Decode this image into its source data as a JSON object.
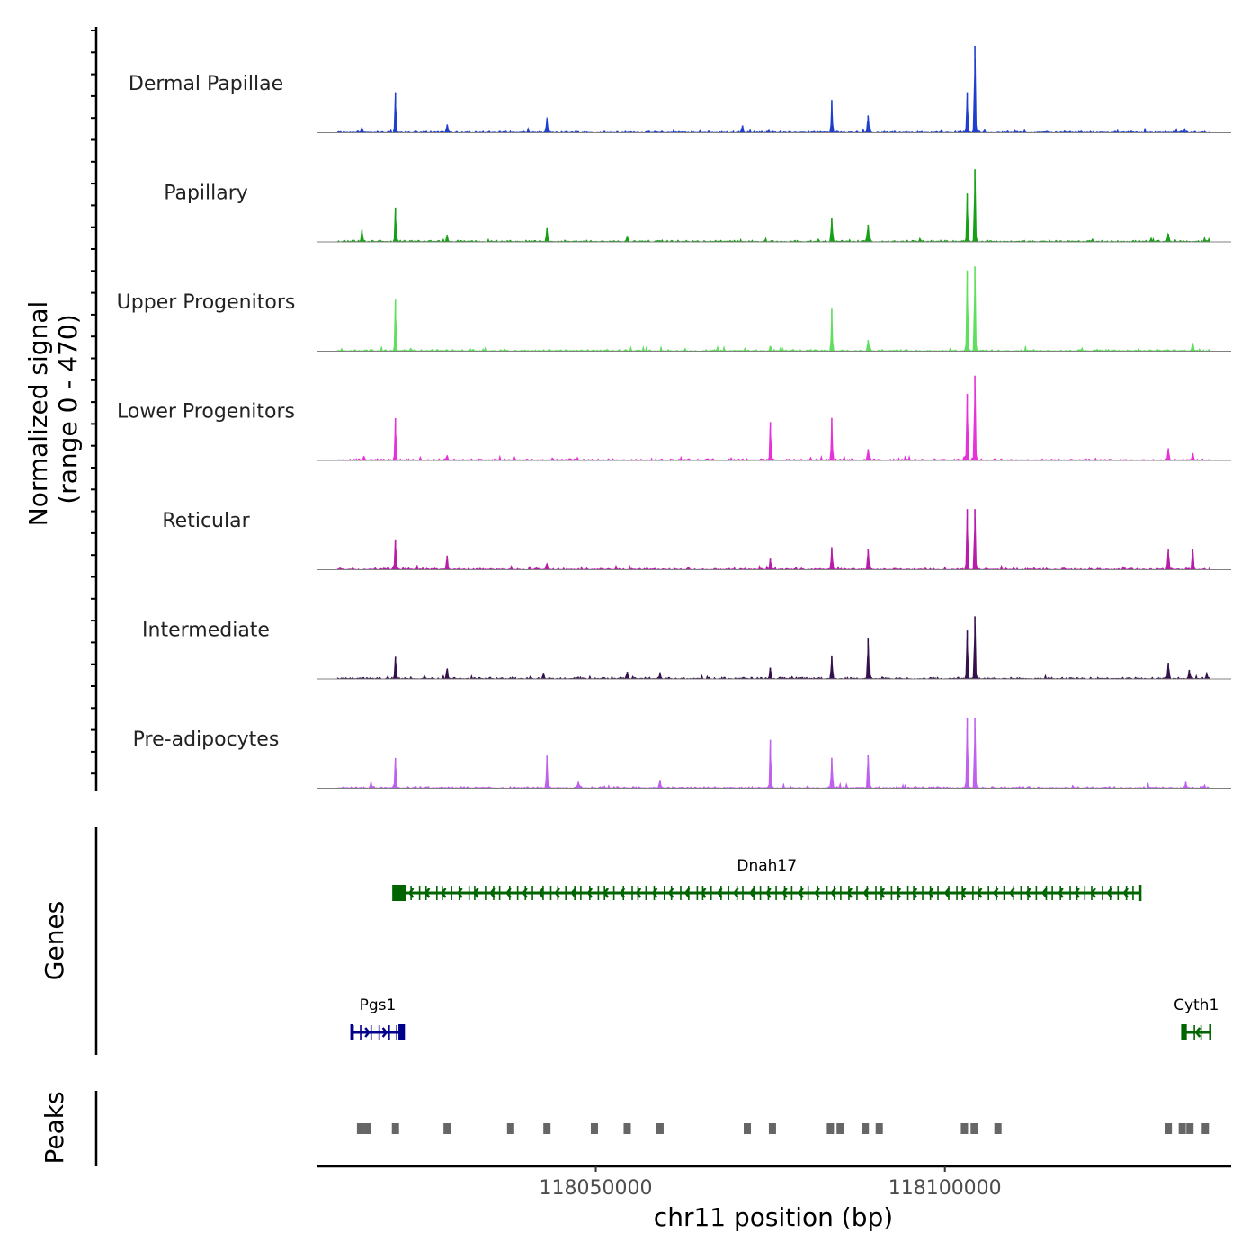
{
  "chart_data": {
    "type": "area",
    "title": "",
    "ylabel_line1": "Normalized signal",
    "ylabel_line2": "(range 0 - 470)",
    "xlabel": "chr11 position (bp)",
    "chromosome": "chr11",
    "xlim": [
      118010000,
      118141000
    ],
    "ylim": [
      0,
      470
    ],
    "x_ticks": [
      118050000,
      118100000
    ],
    "x_tick_labels": [
      "118050000",
      "118100000"
    ],
    "genes_label": "Genes",
    "peaks_label": "Peaks",
    "tracks": [
      {
        "name": "Dermal Papillae",
        "color": "#1f3fcf",
        "peaks": [
          [
            118016500,
            22
          ],
          [
            118021300,
            200
          ],
          [
            118028700,
            40
          ],
          [
            118043000,
            70
          ],
          [
            118071000,
            35
          ],
          [
            118083800,
            160
          ],
          [
            118089000,
            85
          ],
          [
            118103200,
            200
          ],
          [
            118104300,
            430
          ]
        ]
      },
      {
        "name": "Papillary",
        "color": "#16a016",
        "peaks": [
          [
            118016500,
            60
          ],
          [
            118021300,
            170
          ],
          [
            118028700,
            35
          ],
          [
            118043000,
            70
          ],
          [
            118054500,
            30
          ],
          [
            118083800,
            120
          ],
          [
            118089000,
            85
          ],
          [
            118103200,
            240
          ],
          [
            118104300,
            360
          ],
          [
            118132000,
            40
          ]
        ]
      },
      {
        "name": "Upper Progenitors",
        "color": "#5ee05e",
        "peaks": [
          [
            118021300,
            255
          ],
          [
            118075000,
            25
          ],
          [
            118083800,
            210
          ],
          [
            118089000,
            55
          ],
          [
            118103200,
            400
          ],
          [
            118104300,
            420
          ],
          [
            118135500,
            40
          ]
        ]
      },
      {
        "name": "Lower Progenitors",
        "color": "#e632d8",
        "peaks": [
          [
            118016800,
            20
          ],
          [
            118021300,
            210
          ],
          [
            118028700,
            25
          ],
          [
            118075000,
            190
          ],
          [
            118083800,
            210
          ],
          [
            118089000,
            55
          ],
          [
            118103200,
            330
          ],
          [
            118104300,
            420
          ],
          [
            118132000,
            60
          ],
          [
            118135500,
            35
          ]
        ]
      },
      {
        "name": "Reticular",
        "color": "#b81ca8",
        "peaks": [
          [
            118021300,
            150
          ],
          [
            118028700,
            70
          ],
          [
            118043000,
            30
          ],
          [
            118075000,
            55
          ],
          [
            118083800,
            110
          ],
          [
            118089000,
            100
          ],
          [
            118103200,
            300
          ],
          [
            118104300,
            300
          ],
          [
            118132000,
            100
          ],
          [
            118135500,
            100
          ]
        ]
      },
      {
        "name": "Intermediate",
        "color": "#34104d",
        "peaks": [
          [
            118021300,
            110
          ],
          [
            118028700,
            50
          ],
          [
            118042500,
            30
          ],
          [
            118054500,
            35
          ],
          [
            118059200,
            30
          ],
          [
            118075000,
            55
          ],
          [
            118083800,
            115
          ],
          [
            118089000,
            200
          ],
          [
            118103200,
            240
          ],
          [
            118104300,
            310
          ],
          [
            118132000,
            80
          ],
          [
            118135000,
            45
          ],
          [
            118137500,
            25
          ]
        ]
      },
      {
        "name": "Pre-adipocytes",
        "color": "#c060ee",
        "peaks": [
          [
            118017800,
            30
          ],
          [
            118021300,
            150
          ],
          [
            118043000,
            160
          ],
          [
            118047500,
            30
          ],
          [
            118059200,
            40
          ],
          [
            118075000,
            240
          ],
          [
            118083800,
            150
          ],
          [
            118089000,
            165
          ],
          [
            118103200,
            350
          ],
          [
            118104300,
            350
          ],
          [
            118134500,
            30
          ]
        ]
      }
    ],
    "gene_track": {
      "genes": [
        {
          "name": "Dnah17",
          "start": 118021000,
          "end": 118128000,
          "strand": "-",
          "color": "#006400",
          "row": 1
        },
        {
          "name": "Pgs1",
          "start": 118015000,
          "end": 118022500,
          "strand": "+",
          "color": "#00008b",
          "row": 2
        },
        {
          "name": "Cyth1",
          "start": 118134000,
          "end": 118138000,
          "strand": "-",
          "color": "#006400",
          "row": 2
        }
      ]
    },
    "peaks": [
      118016300,
      118017300,
      118021300,
      118028700,
      118037800,
      118043000,
      118049800,
      118054500,
      118059200,
      118071700,
      118075300,
      118083600,
      118085000,
      118088600,
      118090600,
      118102800,
      118104200,
      118107600,
      118132000,
      118134000,
      118135100,
      118137300
    ]
  }
}
